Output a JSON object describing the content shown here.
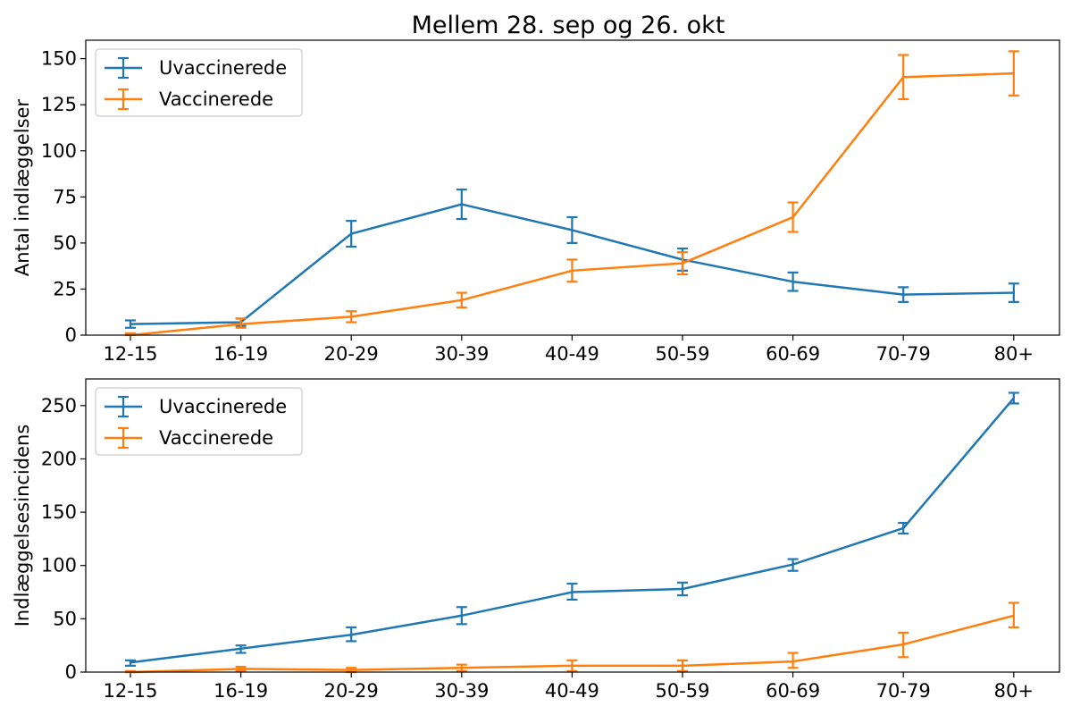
{
  "title": "Mellem 28. sep og 26. okt",
  "colors": {
    "uvaccinerede": "#1f77b4",
    "vaccinerede": "#ff7f0e"
  },
  "chart_data": [
    {
      "type": "line",
      "title": "Mellem 28. sep og 26. okt",
      "ylabel": "Antal indlæggelser",
      "xlabel": "",
      "categories": [
        "12-15",
        "16-19",
        "20-29",
        "30-39",
        "40-49",
        "50-59",
        "60-69",
        "70-79",
        "80+"
      ],
      "ylim": [
        0,
        160
      ],
      "yticks": [
        0,
        25,
        50,
        75,
        100,
        125,
        150
      ],
      "legend": "top-left",
      "grid": false,
      "series": [
        {
          "name": "Uvaccinerede",
          "color": "#1f77b4",
          "values": [
            6,
            7,
            55,
            71,
            57,
            41,
            29,
            22,
            23
          ],
          "err_low": [
            4,
            5,
            48,
            63,
            50,
            35,
            24,
            18,
            18
          ],
          "err_high": [
            8,
            9,
            62,
            79,
            64,
            47,
            34,
            26,
            28
          ]
        },
        {
          "name": "Vaccinerede",
          "color": "#ff7f0e",
          "values": [
            0,
            6,
            10,
            19,
            35,
            39,
            64,
            140,
            142
          ],
          "err_low": [
            0,
            4,
            7,
            15,
            29,
            33,
            56,
            128,
            130
          ],
          "err_high": [
            1,
            9,
            13,
            23,
            41,
            45,
            72,
            152,
            154
          ]
        }
      ]
    },
    {
      "type": "line",
      "title": "",
      "ylabel": "Indlæggelsesincidens",
      "xlabel": "",
      "categories": [
        "12-15",
        "16-19",
        "20-29",
        "30-39",
        "40-49",
        "50-59",
        "60-69",
        "70-79",
        "80+"
      ],
      "ylim": [
        0,
        275
      ],
      "yticks": [
        0,
        50,
        100,
        150,
        200,
        250
      ],
      "legend": "top-left",
      "grid": false,
      "series": [
        {
          "name": "Uvaccinerede",
          "color": "#1f77b4",
          "values": [
            9,
            22,
            35,
            53,
            75,
            78,
            101,
            135,
            257
          ],
          "err_low": [
            6,
            18,
            29,
            45,
            68,
            72,
            95,
            130,
            252
          ],
          "err_high": [
            11,
            25,
            42,
            61,
            83,
            84,
            106,
            140,
            262
          ]
        },
        {
          "name": "Vaccinerede",
          "color": "#ff7f0e",
          "values": [
            0,
            3,
            2,
            4,
            6,
            6,
            10,
            26,
            53
          ],
          "err_low": [
            0,
            1,
            0,
            1,
            1,
            1,
            4,
            14,
            42
          ],
          "err_high": [
            1,
            5,
            4,
            7,
            11,
            11,
            18,
            37,
            65
          ]
        }
      ]
    }
  ]
}
